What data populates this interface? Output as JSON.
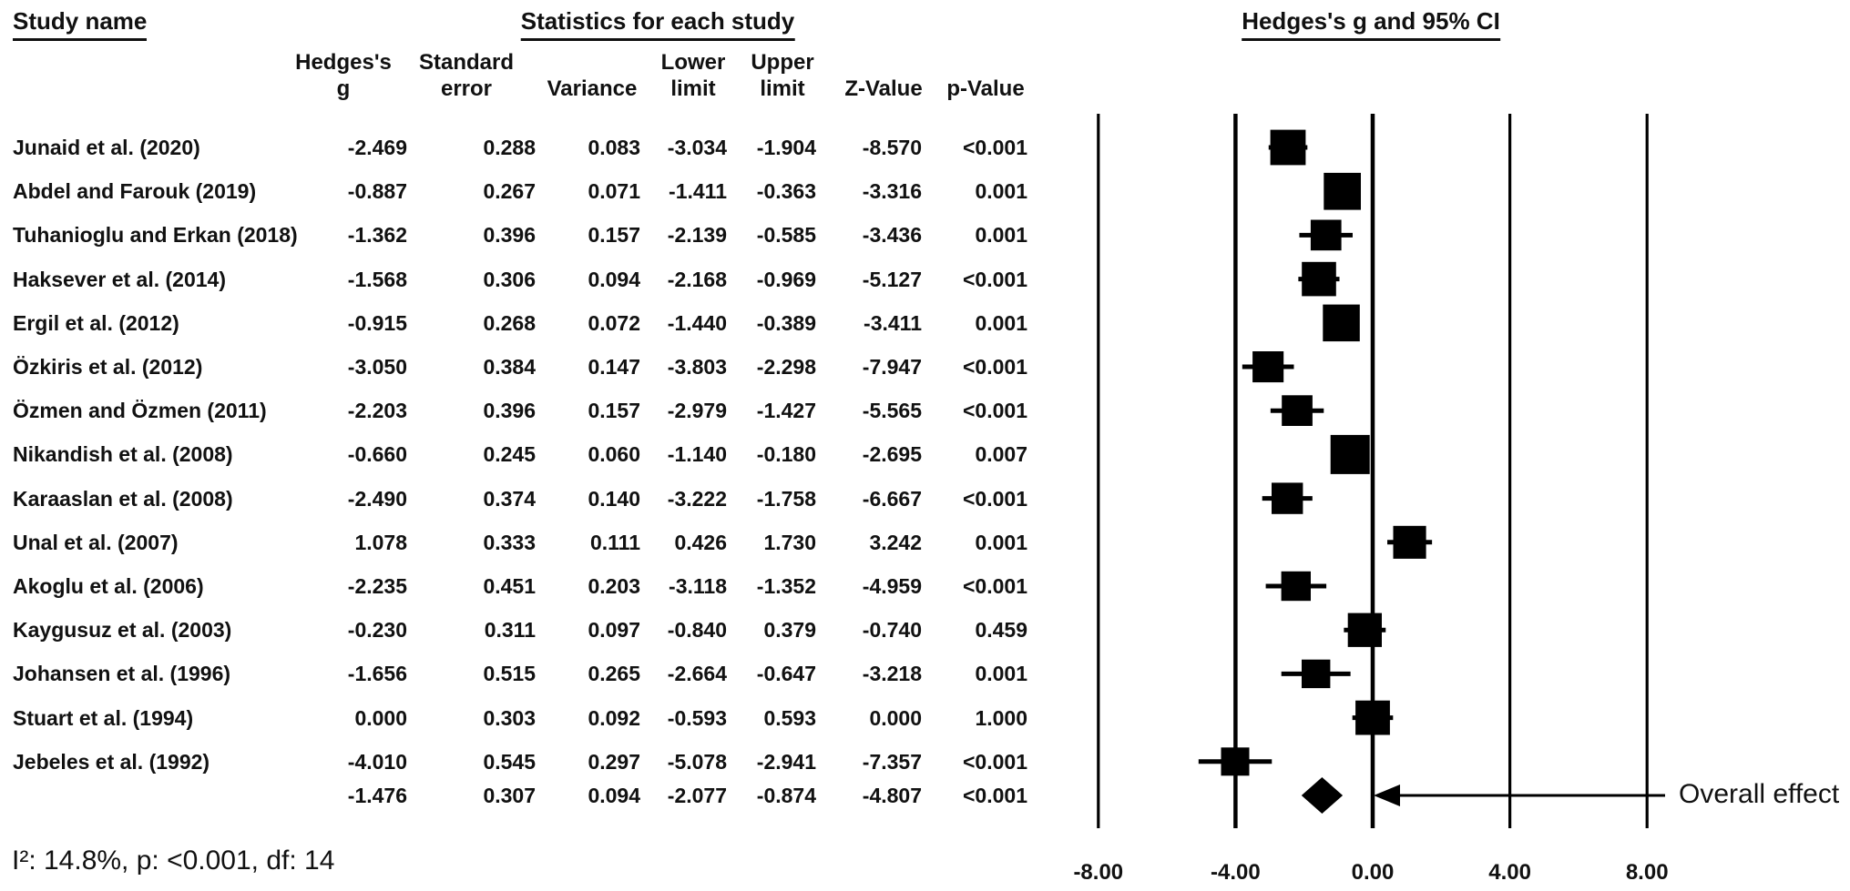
{
  "header": {
    "study_col_title": "Study name",
    "stats_title": "Statistics for each study",
    "plot_title": "Hedges's g and 95% CI"
  },
  "columns": [
    {
      "line1": "Hedges's",
      "line2": "g"
    },
    {
      "line1": "Standard",
      "line2": "error"
    },
    {
      "line1": "",
      "line2": "Variance"
    },
    {
      "line1": "Lower",
      "line2": "limit"
    },
    {
      "line1": "Upper",
      "line2": "limit"
    },
    {
      "line1": "",
      "line2": "Z-Value"
    },
    {
      "line1": "",
      "line2": "p-Value"
    }
  ],
  "chart_data": {
    "type": "forest",
    "effect_measure": "Hedges's g",
    "xlim": [
      -9,
      9
    ],
    "x_ticks": [
      {
        "value": -8,
        "label": "-8.00"
      },
      {
        "value": -4,
        "label": "-4.00"
      },
      {
        "value": 0,
        "label": "0.00"
      },
      {
        "value": 4,
        "label": "4.00"
      },
      {
        "value": 8,
        "label": "8.00"
      }
    ],
    "studies": [
      {
        "name": "Junaid et al. (2020)",
        "g": "-2.469",
        "se": "0.288",
        "variance": "0.083",
        "lower": "-3.034",
        "upper": "-1.904",
        "z": "-8.570",
        "p": "<0.001"
      },
      {
        "name": "Abdel and Farouk (2019)",
        "g": "-0.887",
        "se": "0.267",
        "variance": "0.071",
        "lower": "-1.411",
        "upper": "-0.363",
        "z": "-3.316",
        "p": "0.001"
      },
      {
        "name": "Tuhanioglu and Erkan (2018)",
        "g": "-1.362",
        "se": "0.396",
        "variance": "0.157",
        "lower": "-2.139",
        "upper": "-0.585",
        "z": "-3.436",
        "p": "0.001"
      },
      {
        "name": "Haksever et al. (2014)",
        "g": "-1.568",
        "se": "0.306",
        "variance": "0.094",
        "lower": "-2.168",
        "upper": "-0.969",
        "z": "-5.127",
        "p": "<0.001"
      },
      {
        "name": "Ergil et al. (2012)",
        "g": "-0.915",
        "se": "0.268",
        "variance": "0.072",
        "lower": "-1.440",
        "upper": "-0.389",
        "z": "-3.411",
        "p": "0.001"
      },
      {
        "name": "Özkiris et al. (2012)",
        "g": "-3.050",
        "se": "0.384",
        "variance": "0.147",
        "lower": "-3.803",
        "upper": "-2.298",
        "z": "-7.947",
        "p": "<0.001"
      },
      {
        "name": "Özmen and Özmen (2011)",
        "g": "-2.203",
        "se": "0.396",
        "variance": "0.157",
        "lower": "-2.979",
        "upper": "-1.427",
        "z": "-5.565",
        "p": "<0.001"
      },
      {
        "name": "Nikandish et al. (2008)",
        "g": "-0.660",
        "se": "0.245",
        "variance": "0.060",
        "lower": "-1.140",
        "upper": "-0.180",
        "z": "-2.695",
        "p": "0.007"
      },
      {
        "name": "Karaaslan et al. (2008)",
        "g": "-2.490",
        "se": "0.374",
        "variance": "0.140",
        "lower": "-3.222",
        "upper": "-1.758",
        "z": "-6.667",
        "p": "<0.001"
      },
      {
        "name": "Unal et al. (2007)",
        "g": "1.078",
        "se": "0.333",
        "variance": "0.111",
        "lower": "0.426",
        "upper": "1.730",
        "z": "3.242",
        "p": "0.001"
      },
      {
        "name": "Akoglu et al. (2006)",
        "g": "-2.235",
        "se": "0.451",
        "variance": "0.203",
        "lower": "-3.118",
        "upper": "-1.352",
        "z": "-4.959",
        "p": "<0.001"
      },
      {
        "name": "Kaygusuz et al. (2003)",
        "g": "-0.230",
        "se": "0.311",
        "variance": "0.097",
        "lower": "-0.840",
        "upper": "0.379",
        "z": "-0.740",
        "p": "0.459"
      },
      {
        "name": "Johansen et al. (1996)",
        "g": "-1.656",
        "se": "0.515",
        "variance": "0.265",
        "lower": "-2.664",
        "upper": "-0.647",
        "z": "-3.218",
        "p": "0.001"
      },
      {
        "name": "Stuart et al. (1994)",
        "g": "0.000",
        "se": "0.303",
        "variance": "0.092",
        "lower": "-0.593",
        "upper": "0.593",
        "z": "0.000",
        "p": "1.000"
      },
      {
        "name": "Jebeles et al. (1992)",
        "g": "-4.010",
        "se": "0.545",
        "variance": "0.297",
        "lower": "-5.078",
        "upper": "-2.941",
        "z": "-7.357",
        "p": "<0.001"
      }
    ],
    "overall": {
      "g": "-1.476",
      "se": "0.307",
      "variance": "0.094",
      "lower": "-2.077",
      "upper": "-0.874",
      "z": "-4.807",
      "p": "<0.001"
    }
  },
  "plot": {
    "overall_effect_label": "Overall effect"
  },
  "footer": {
    "heterogeneity": "I²: 14.8%, p: <0.001, df: 14"
  },
  "colors": {
    "ink": "#000000",
    "background": "#ffffff"
  }
}
